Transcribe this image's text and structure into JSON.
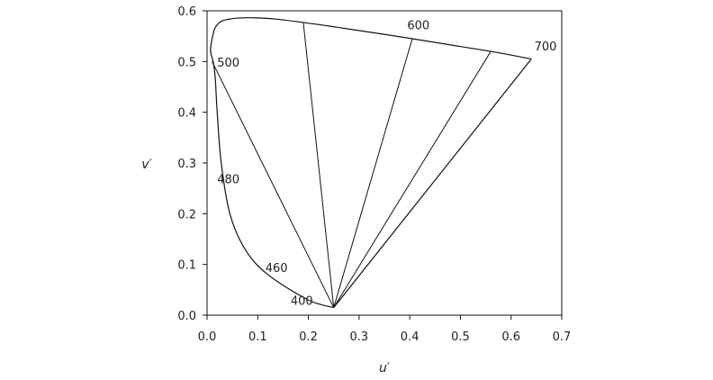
{
  "chart_data": {
    "type": "line",
    "title": "",
    "xlabel": "u′",
    "ylabel": "v′",
    "xlim": [
      0.0,
      0.7
    ],
    "ylim": [
      0.0,
      0.6
    ],
    "x_ticks": [
      "0.0",
      "0.1",
      "0.2",
      "0.3",
      "0.4",
      "0.5",
      "0.6",
      "0.7"
    ],
    "y_ticks": [
      "0.0",
      "0.1",
      "0.2",
      "0.3",
      "0.4",
      "0.5",
      "0.6"
    ],
    "grid": false,
    "legend": "none",
    "series": [
      {
        "kind": "spectral-locus",
        "points": [
          [
            0.64,
            0.505
          ],
          [
            0.56,
            0.52
          ],
          [
            0.405,
            0.545
          ],
          [
            0.19,
            0.577
          ],
          [
            0.1,
            0.586
          ],
          [
            0.04,
            0.583
          ],
          [
            0.018,
            0.57
          ],
          [
            0.01,
            0.545
          ],
          [
            0.007,
            0.52
          ],
          [
            0.012,
            0.5
          ],
          [
            0.016,
            0.47
          ],
          [
            0.02,
            0.4
          ],
          [
            0.028,
            0.3
          ],
          [
            0.045,
            0.2
          ],
          [
            0.075,
            0.13
          ],
          [
            0.12,
            0.08
          ],
          [
            0.2,
            0.03
          ],
          [
            0.25,
            0.015
          ]
        ]
      },
      {
        "kind": "line-of-purples",
        "points": [
          [
            0.64,
            0.505
          ],
          [
            0.25,
            0.015
          ]
        ]
      }
    ],
    "rays_from": [
      0.25,
      0.015
    ],
    "rays_to": [
      [
        0.01,
        0.5
      ],
      [
        0.19,
        0.577
      ],
      [
        0.405,
        0.545
      ],
      [
        0.56,
        0.52
      ]
    ],
    "wavelength_labels": [
      {
        "text": "700",
        "u": 0.646,
        "v": 0.522
      },
      {
        "text": "600",
        "u": 0.395,
        "v": 0.564
      },
      {
        "text": "500",
        "u": 0.02,
        "v": 0.49
      },
      {
        "text": "480",
        "u": 0.02,
        "v": 0.26
      },
      {
        "text": "460",
        "u": 0.115,
        "v": 0.085
      },
      {
        "text": "400",
        "u": 0.165,
        "v": 0.02
      }
    ],
    "colors": {
      "line": "#111111",
      "text": "#222222"
    }
  }
}
